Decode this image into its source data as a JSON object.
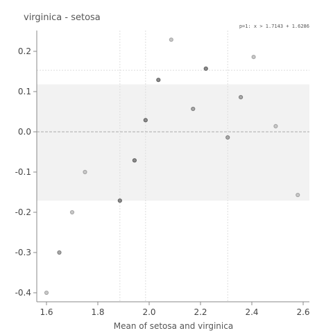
{
  "chart_data": {
    "type": "scatter",
    "title": "virginica - setosa",
    "annotation": "p=1: x > 1.7143 + 1.6286",
    "xlabel": "Mean of setosa and virginica",
    "ylabel": "",
    "xlim": [
      1.56,
      2.62
    ],
    "ylim": [
      -0.43,
      0.27
    ],
    "x_ticks": [
      1.6,
      1.8,
      2.0,
      2.2,
      2.4,
      2.6
    ],
    "x_tick_labels": [
      "1.6",
      "1.8",
      "2.0",
      "2.2",
      "2.4",
      "2.6"
    ],
    "y_ticks": [
      0.2,
      0.1,
      0.0,
      -0.1,
      -0.2,
      -0.3,
      -0.4
    ],
    "y_tick_labels": [
      "0.2",
      "0.1",
      "0.0",
      "-0.1",
      "-0.2",
      "-0.3",
      "-0.4"
    ],
    "shaded_band": [
      -0.171,
      0.118
    ],
    "reference_line_y": 0.0,
    "dotted_hline_y": 0.153,
    "vertical_lines_x": [
      1.886,
      1.986,
      2.306
    ],
    "grid": false,
    "points": [
      {
        "x": 1.6,
        "y": -0.4,
        "emphasis": "light"
      },
      {
        "x": 1.65,
        "y": -0.3,
        "emphasis": "medium"
      },
      {
        "x": 1.7,
        "y": -0.2,
        "emphasis": "light"
      },
      {
        "x": 1.75,
        "y": -0.1,
        "emphasis": "light"
      },
      {
        "x": 1.886,
        "y": -0.171,
        "emphasis": "dark"
      },
      {
        "x": 1.943,
        "y": -0.071,
        "emphasis": "dark"
      },
      {
        "x": 1.986,
        "y": 0.029,
        "emphasis": "dark"
      },
      {
        "x": 2.036,
        "y": 0.129,
        "emphasis": "dark"
      },
      {
        "x": 2.086,
        "y": 0.229,
        "emphasis": "light"
      },
      {
        "x": 2.171,
        "y": 0.057,
        "emphasis": "medium"
      },
      {
        "x": 2.221,
        "y": 0.157,
        "emphasis": "dark"
      },
      {
        "x": 2.306,
        "y": -0.014,
        "emphasis": "medium"
      },
      {
        "x": 2.357,
        "y": 0.086,
        "emphasis": "medium"
      },
      {
        "x": 2.407,
        "y": 0.186,
        "emphasis": "light"
      },
      {
        "x": 2.493,
        "y": 0.014,
        "emphasis": "light"
      },
      {
        "x": 2.579,
        "y": -0.157,
        "emphasis": "light"
      }
    ],
    "colors": {
      "band": "#f2f2f2",
      "axis": "#888888",
      "ref_line": "#aaaaaa",
      "dotted": "#dddddd",
      "point_light_fill": "#c8c8c8",
      "point_medium_fill": "#a8a8a8",
      "point_dark_fill": "#8c8c8c",
      "point_stroke": "#5a5a5a"
    }
  }
}
